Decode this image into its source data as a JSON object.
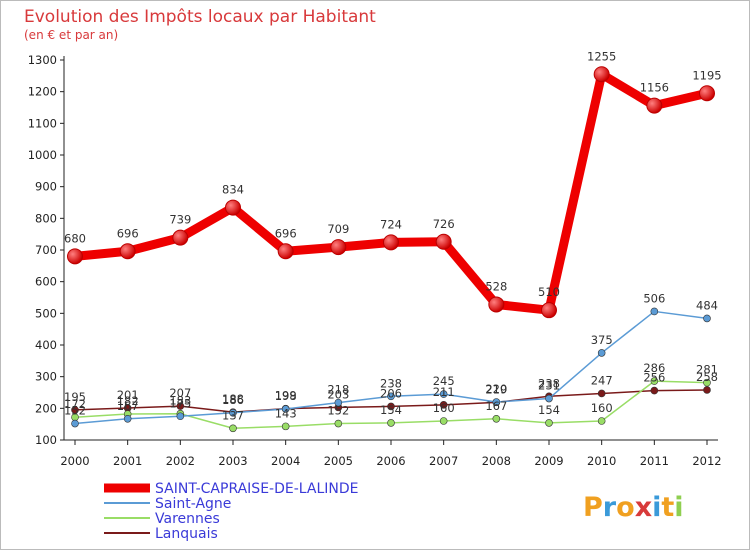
{
  "chart_data": {
    "type": "line",
    "title": "Evolution des Impôts locaux par Habitant",
    "subtitle": "(en € et par an)",
    "xlabel": "",
    "ylabel": "",
    "categories": [
      "2000",
      "2001",
      "2002",
      "2003",
      "2004",
      "2005",
      "2006",
      "2007",
      "2008",
      "2009",
      "2010",
      "2011",
      "2012"
    ],
    "ylim": [
      100,
      1300
    ],
    "yticks": [
      100,
      200,
      300,
      400,
      500,
      600,
      700,
      800,
      900,
      1000,
      1100,
      1200,
      1300
    ],
    "grid": false,
    "legend_position": "bottom-left",
    "series": [
      {
        "name": "SAINT-CAPRAISE-DE-LALINDE",
        "color": "#ee0000",
        "values": [
          680,
          696,
          739,
          834,
          696,
          709,
          724,
          726,
          528,
          510,
          1255,
          1156,
          1195
        ],
        "labels": [
          "680",
          "696",
          "739",
          "834",
          "696",
          "709",
          "724",
          "726",
          "528",
          "510",
          "1255",
          "1156",
          "1195"
        ]
      },
      {
        "name": "Saint-Agne",
        "color": "#5b9bd5",
        "values": [
          152,
          167,
          175,
          186,
          198,
          218,
          238,
          245,
          220,
          231,
          375,
          506,
          484
        ],
        "labels": [
          "152",
          "167",
          "175",
          "186",
          "198",
          "218",
          "238",
          "245",
          "220",
          "231",
          "375",
          "506",
          "484"
        ]
      },
      {
        "name": "Varennes",
        "color": "#99dd66",
        "values": [
          172,
          182,
          183,
          137,
          143,
          152,
          154,
          160,
          167,
          154,
          160,
          286,
          281
        ],
        "labels": [
          "172",
          "182",
          "183",
          "137",
          "143",
          "152",
          "154",
          "160",
          "167",
          "154",
          "160",
          "286",
          "281"
        ]
      },
      {
        "name": "Lanquais",
        "color": "#7a1a1a",
        "values": [
          195,
          201,
          207,
          188,
          199,
          203,
          206,
          211,
          219,
          238,
          247,
          256,
          258
        ],
        "labels": [
          "195",
          "201",
          "207",
          "188",
          "199",
          "203",
          "206",
          "211",
          "219",
          "238",
          "247",
          "256",
          "258"
        ]
      }
    ]
  },
  "brand": {
    "letters": [
      "P",
      "r",
      "o",
      "x",
      "i",
      "t",
      "i"
    ],
    "colors": [
      "#f0a020",
      "#3a9ad9",
      "#f0a020",
      "#d83a3a",
      "#3a9ad9",
      "#f0a020",
      "#8fcf50"
    ]
  }
}
